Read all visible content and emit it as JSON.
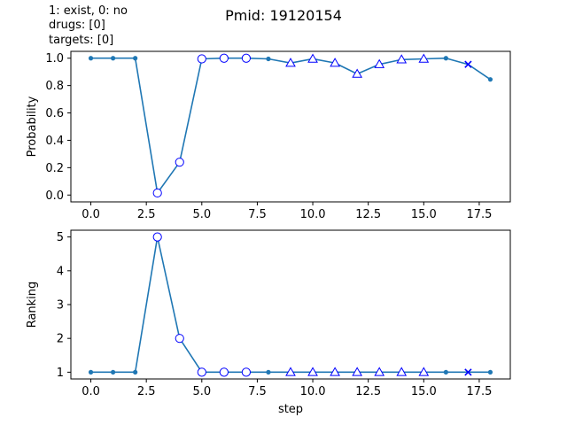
{
  "figure": {
    "title": "Pmid: 19120154",
    "notes": [
      "1: exist,    0: no",
      "drugs: [0]",
      "targets: [0]"
    ]
  },
  "chart_data": [
    {
      "type": "line",
      "ylabel": "Probability",
      "xlabel": "",
      "xlim": [
        -0.9,
        18.9
      ],
      "ylim": [
        -0.05,
        1.05
      ],
      "xticks": [
        0.0,
        2.5,
        5.0,
        7.5,
        10.0,
        12.5,
        15.0,
        17.5
      ],
      "xtick_labels": [
        "0.0",
        "2.5",
        "5.0",
        "7.5",
        "10.0",
        "12.5",
        "15.0",
        "17.5"
      ],
      "yticks": [
        0.0,
        0.2,
        0.4,
        0.6,
        0.8,
        1.0
      ],
      "ytick_labels": [
        "0.0",
        "0.2",
        "0.4",
        "0.6",
        "0.8",
        "1.0"
      ],
      "x": [
        0,
        1,
        2,
        3,
        4,
        5,
        6,
        7,
        8,
        9,
        10,
        11,
        12,
        13,
        14,
        15,
        16,
        17,
        18
      ],
      "y": [
        1.0,
        1.0,
        1.0,
        0.015,
        0.24,
        0.995,
        1.0,
        1.0,
        0.995,
        0.965,
        0.995,
        0.965,
        0.885,
        0.955,
        0.99,
        0.995,
        1.0,
        0.955,
        0.845
      ],
      "markers": [
        "dot",
        "dot",
        "dot",
        "circle",
        "circle",
        "circle",
        "circle",
        "circle",
        "dot",
        "triangle",
        "triangle",
        "triangle",
        "triangle",
        "triangle",
        "triangle",
        "triangle",
        "dot",
        "x",
        "dot"
      ],
      "line_color": "#1f77b4",
      "marker_edge_color": "#0000ff"
    },
    {
      "type": "line",
      "ylabel": "Ranking",
      "xlabel": "step",
      "xlim": [
        -0.9,
        18.9
      ],
      "ylim": [
        0.8,
        5.2
      ],
      "xticks": [
        0.0,
        2.5,
        5.0,
        7.5,
        10.0,
        12.5,
        15.0,
        17.5
      ],
      "xtick_labels": [
        "0.0",
        "2.5",
        "5.0",
        "7.5",
        "10.0",
        "12.5",
        "15.0",
        "17.5"
      ],
      "yticks": [
        1,
        2,
        3,
        4,
        5
      ],
      "ytick_labels": [
        "1",
        "2",
        "3",
        "4",
        "5"
      ],
      "x": [
        0,
        1,
        2,
        3,
        4,
        5,
        6,
        7,
        8,
        9,
        10,
        11,
        12,
        13,
        14,
        15,
        16,
        17,
        18
      ],
      "y": [
        1,
        1,
        1,
        5,
        2,
        1,
        1,
        1,
        1,
        1,
        1,
        1,
        1,
        1,
        1,
        1,
        1,
        1,
        1
      ],
      "markers": [
        "dot",
        "dot",
        "dot",
        "circle",
        "circle",
        "circle",
        "circle",
        "circle",
        "dot",
        "triangle",
        "triangle",
        "triangle",
        "triangle",
        "triangle",
        "triangle",
        "triangle",
        "dot",
        "x",
        "dot"
      ],
      "line_color": "#1f77b4",
      "marker_edge_color": "#0000ff"
    }
  ]
}
